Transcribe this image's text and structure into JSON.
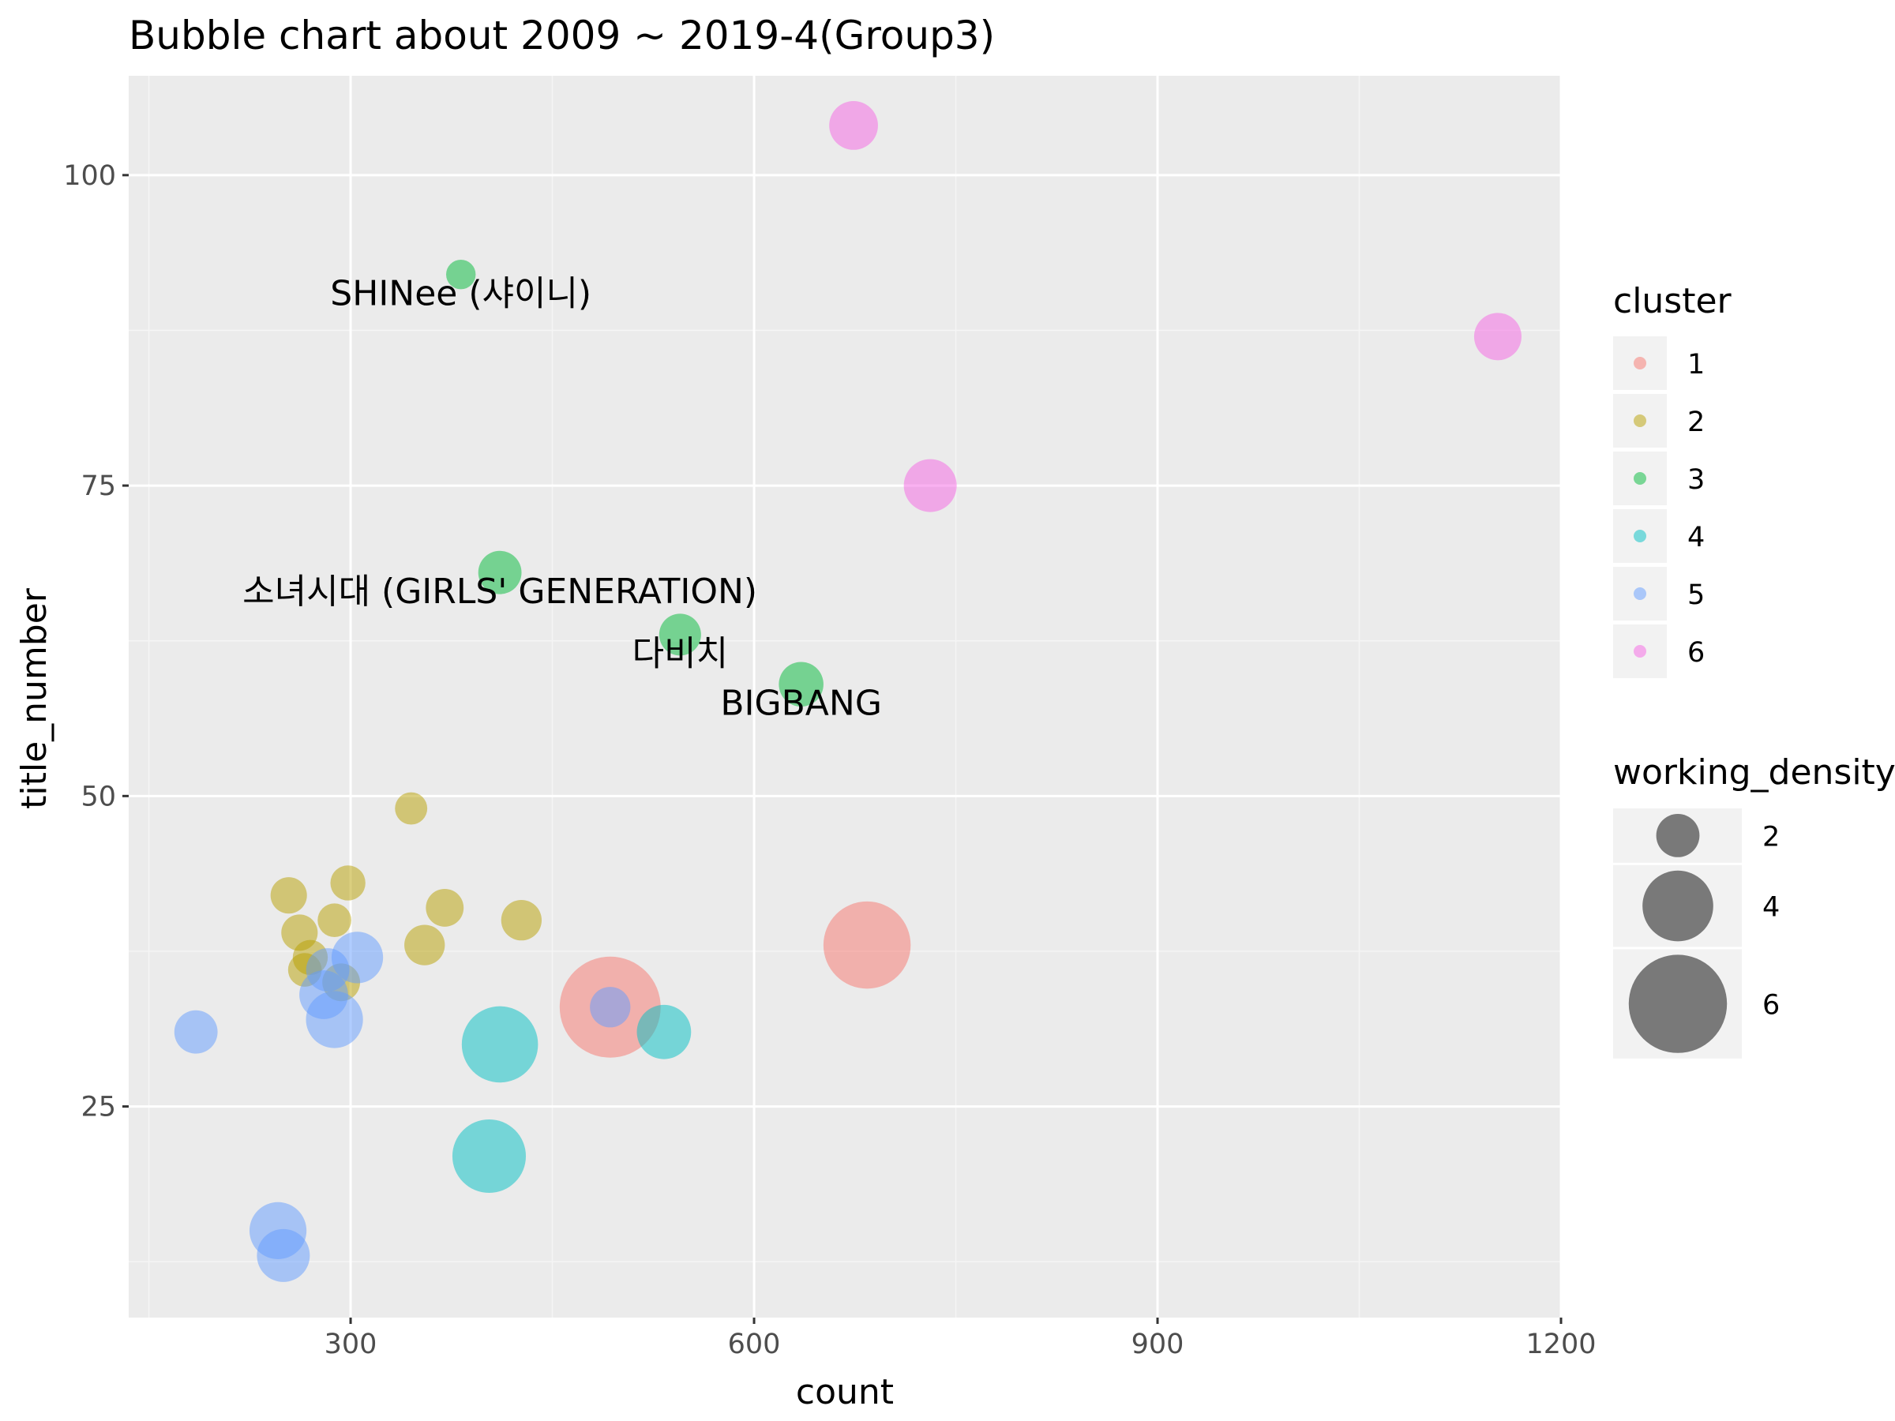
{
  "chart_data": {
    "type": "scatter",
    "title": "Bubble chart about 2009 ~ 2019-4(Group3)",
    "xlabel": "count",
    "ylabel": "title_number",
    "xlim": [
      135,
      1200
    ],
    "ylim": [
      8,
      108
    ],
    "x_ticks": [
      300,
      600,
      900,
      1200
    ],
    "y_ticks": [
      25,
      50,
      75,
      100
    ],
    "grid": true,
    "legend_position": "right",
    "colors": {
      "1": "#F8766D",
      "2": "#B79F00",
      "3": "#00BA38",
      "4": "#00BFC4",
      "5": "#619CFF",
      "6": "#F564E3"
    },
    "point_alpha": 0.5,
    "cluster_legend": {
      "title": "cluster",
      "entries": [
        "1",
        "2",
        "3",
        "4",
        "5",
        "6"
      ]
    },
    "size_legend": {
      "title": "working_density",
      "entries": [
        {
          "label": "2",
          "value": 2
        },
        {
          "label": "4",
          "value": 4
        },
        {
          "label": "6",
          "value": 6
        }
      ]
    },
    "points": [
      {
        "x": 493,
        "y": 33,
        "size": 6.2,
        "cluster": "1"
      },
      {
        "x": 684,
        "y": 38,
        "size": 5.2,
        "cluster": "1"
      },
      {
        "x": 254,
        "y": 42,
        "size": 1.5,
        "cluster": "2"
      },
      {
        "x": 262,
        "y": 39,
        "size": 1.5,
        "cluster": "2"
      },
      {
        "x": 266,
        "y": 36,
        "size": 1.3,
        "cluster": "2"
      },
      {
        "x": 270,
        "y": 37,
        "size": 1.4,
        "cluster": "2"
      },
      {
        "x": 288,
        "y": 40,
        "size": 1.3,
        "cluster": "2"
      },
      {
        "x": 298,
        "y": 43,
        "size": 1.4,
        "cluster": "2"
      },
      {
        "x": 345,
        "y": 49,
        "size": 1.2,
        "cluster": "2"
      },
      {
        "x": 355,
        "y": 38,
        "size": 1.8,
        "cluster": "2"
      },
      {
        "x": 370,
        "y": 41,
        "size": 1.6,
        "cluster": "2"
      },
      {
        "x": 427,
        "y": 40,
        "size": 1.8,
        "cluster": "2"
      },
      {
        "x": 293,
        "y": 35,
        "size": 1.6,
        "cluster": "2"
      },
      {
        "x": 382,
        "y": 92,
        "size": 1.0,
        "cluster": "3"
      },
      {
        "x": 411,
        "y": 68,
        "size": 2.0,
        "cluster": "3"
      },
      {
        "x": 545,
        "y": 63,
        "size": 1.9,
        "cluster": "3"
      },
      {
        "x": 635,
        "y": 59,
        "size": 2.1,
        "cluster": "3"
      },
      {
        "x": 411,
        "y": 30,
        "size": 4.4,
        "cluster": "4"
      },
      {
        "x": 403,
        "y": 21,
        "size": 4.2,
        "cluster": "4"
      },
      {
        "x": 533,
        "y": 31,
        "size": 2.8,
        "cluster": "4"
      },
      {
        "x": 185,
        "y": 31,
        "size": 2.0,
        "cluster": "5"
      },
      {
        "x": 246,
        "y": 15,
        "size": 3.0,
        "cluster": "5"
      },
      {
        "x": 250,
        "y": 13,
        "size": 2.7,
        "cluster": "5"
      },
      {
        "x": 280,
        "y": 34,
        "size": 2.4,
        "cluster": "5"
      },
      {
        "x": 288,
        "y": 32,
        "size": 3.0,
        "cluster": "5"
      },
      {
        "x": 283,
        "y": 36,
        "size": 2.0,
        "cluster": "5"
      },
      {
        "x": 305,
        "y": 37,
        "size": 2.6,
        "cluster": "5"
      },
      {
        "x": 493,
        "y": 33,
        "size": 1.8,
        "cluster": "5"
      },
      {
        "x": 674,
        "y": 104,
        "size": 2.4,
        "cluster": "6"
      },
      {
        "x": 1153,
        "y": 87,
        "size": 2.3,
        "cluster": "6"
      },
      {
        "x": 731,
        "y": 75,
        "size": 2.7,
        "cluster": "6"
      }
    ],
    "annotations": [
      {
        "text": "SHINee (샤이니)",
        "x": 382,
        "y": 90.5
      },
      {
        "text": "소녀시대 (GIRLS' GENERATION)",
        "x": 411,
        "y": 66.5
      },
      {
        "text": "다비치",
        "x": 545,
        "y": 61.5
      },
      {
        "text": "BIGBANG",
        "x": 635,
        "y": 57.5
      }
    ]
  }
}
